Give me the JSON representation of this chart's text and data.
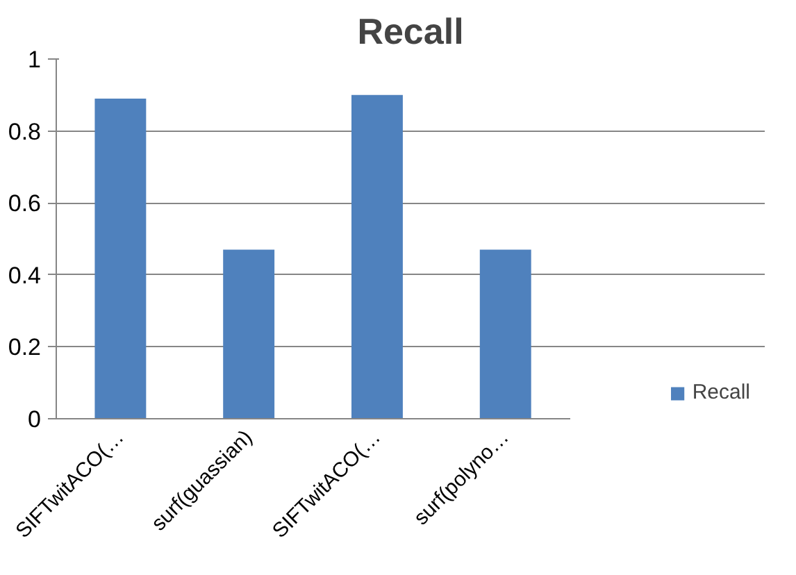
{
  "chart_data": {
    "type": "bar",
    "title": "Recall",
    "categories": [
      "SIFTwitACO(…",
      "surf(guassian)",
      "SIFTwitACO(…",
      "surf(polyno…"
    ],
    "series": [
      {
        "name": "Recall",
        "color": "#4f81bd",
        "values": [
          0.89,
          0.47,
          0.9,
          0.47
        ]
      }
    ],
    "ylim": [
      0,
      1
    ],
    "yticks": [
      0,
      0.2,
      0.4,
      0.6,
      0.8,
      1
    ],
    "grid": "y",
    "legend": "right"
  }
}
